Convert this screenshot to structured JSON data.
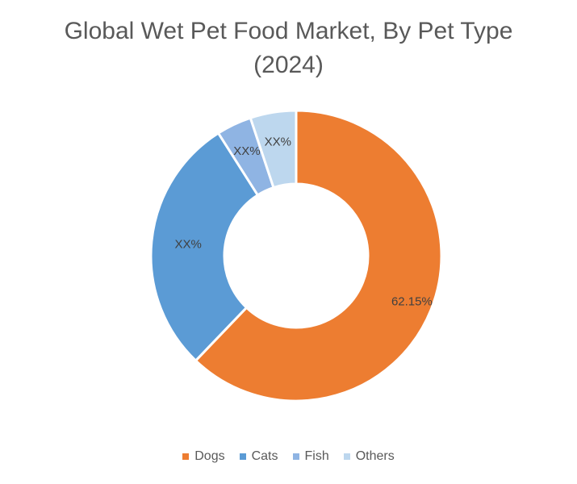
{
  "chart_data": {
    "type": "pie",
    "variant": "donut",
    "title_lines": [
      "Global Wet Pet Food Market, By Pet Type",
      "(2024)"
    ],
    "categories": [
      "Dogs",
      "Cats",
      "Fish",
      "Others"
    ],
    "values": [
      62.15,
      28.85,
      3.9,
      5.1
    ],
    "data_labels": [
      "62.15%",
      "XX%",
      "XX%",
      "XX%"
    ],
    "colors": [
      "#ED7D31",
      "#5B9BD5",
      "#8FB4E3",
      "#BDD7EE"
    ],
    "legend_position": "bottom"
  }
}
